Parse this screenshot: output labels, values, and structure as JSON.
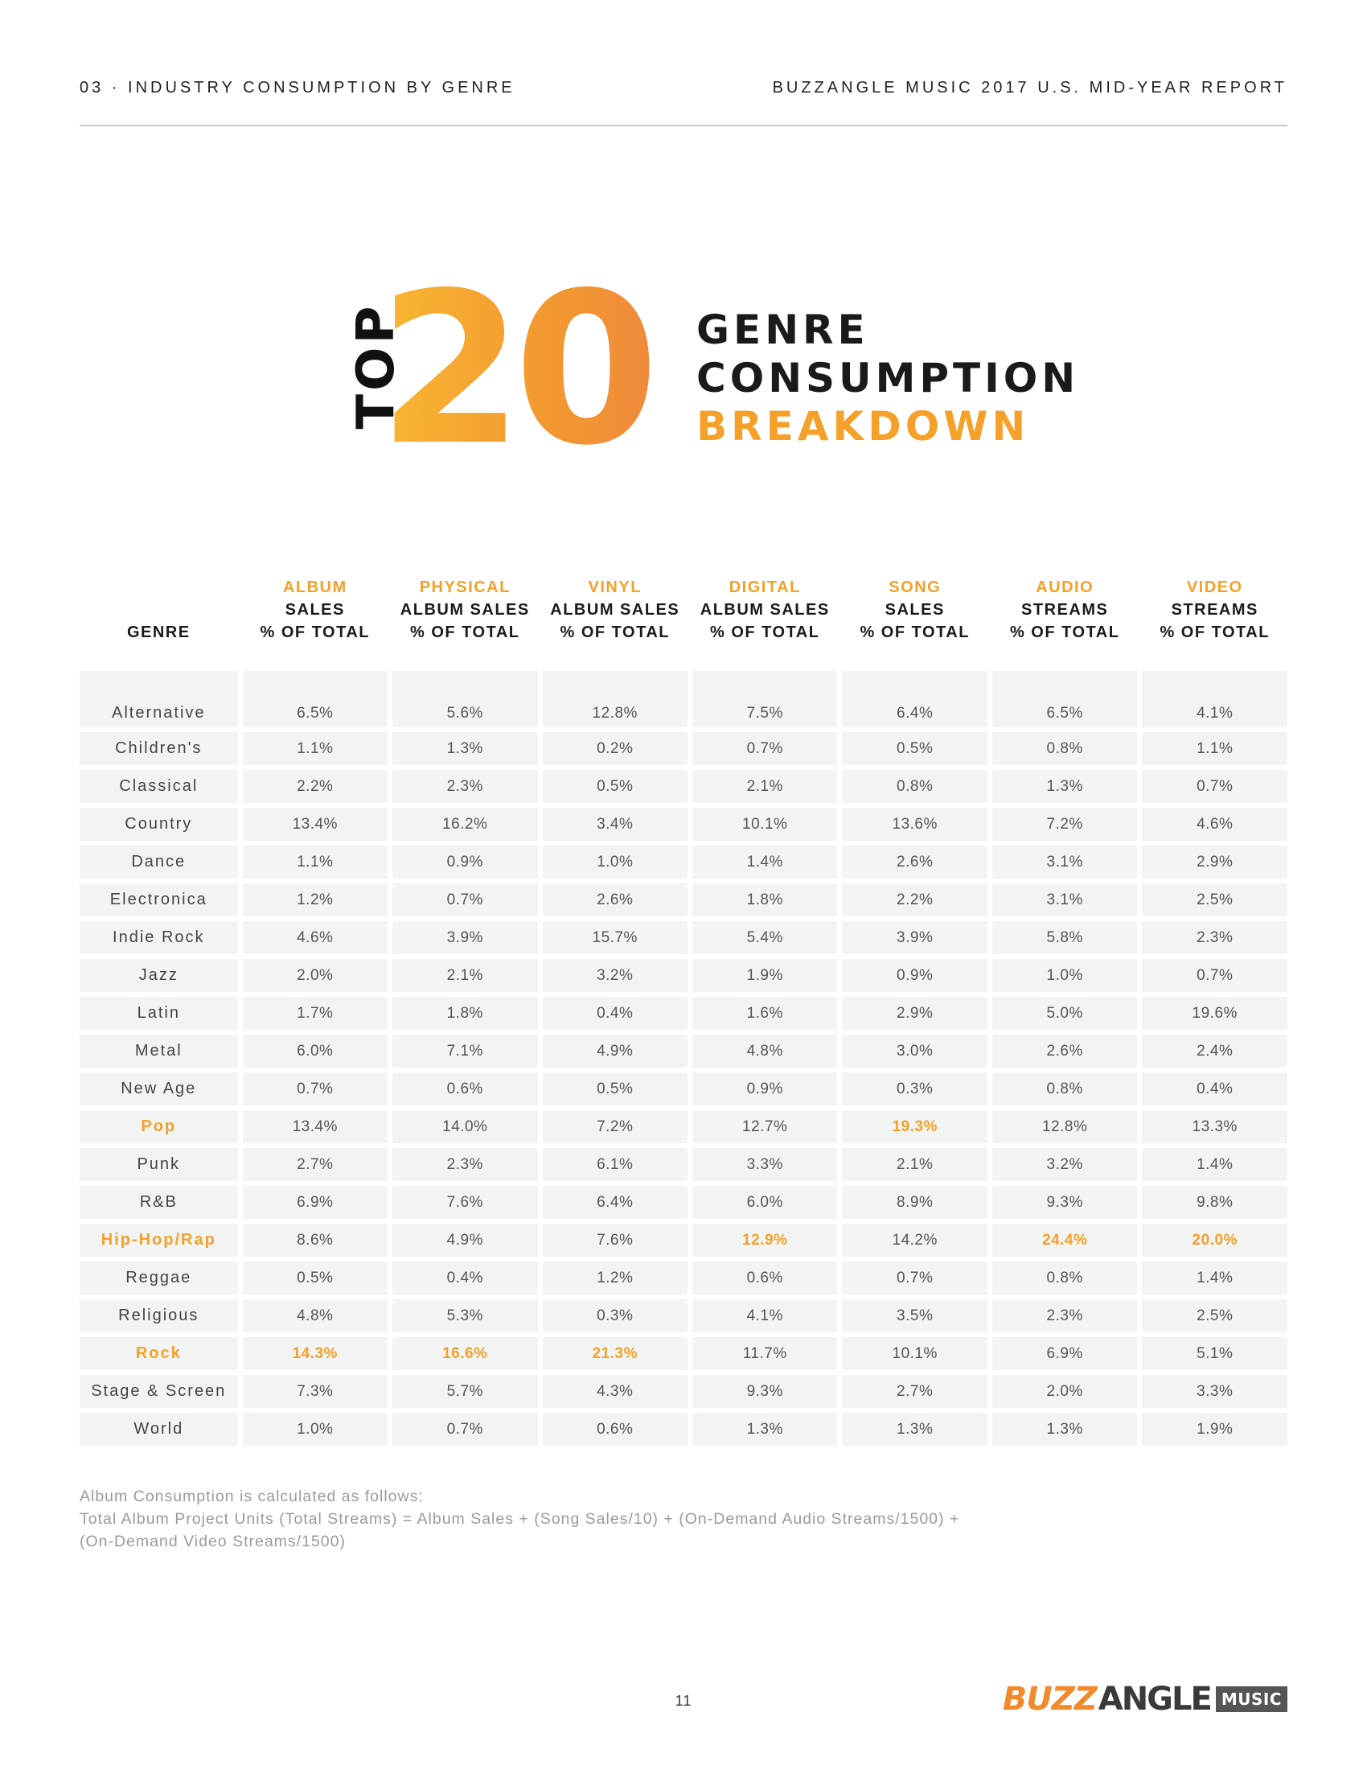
{
  "header": {
    "left": "03 · INDUSTRY CONSUMPTION BY GENRE",
    "right": "BUZZANGLE MUSIC 2017 U.S. MID-YEAR REPORT"
  },
  "title": {
    "top_word": "TOP",
    "number": "20",
    "line1": "GENRE",
    "line2": "CONSUMPTION",
    "line3": "BREAKDOWN"
  },
  "colors": {
    "accent": "#f5a028",
    "cell_bg": "#f2f3f3",
    "text": "#555555"
  },
  "table": {
    "headers": [
      {
        "lines": [
          "GENRE"
        ]
      },
      {
        "accent": "ALBUM",
        "lines": [
          "SALES",
          "% OF TOTAL"
        ]
      },
      {
        "accent": "PHYSICAL",
        "lines": [
          "ALBUM SALES",
          "% OF TOTAL"
        ]
      },
      {
        "accent": "VINYL",
        "lines": [
          "ALBUM SALES",
          "% OF TOTAL"
        ]
      },
      {
        "accent": "DIGITAL",
        "lines": [
          "ALBUM SALES",
          "% OF TOTAL"
        ]
      },
      {
        "accent": "SONG",
        "lines": [
          "SALES",
          "% OF TOTAL"
        ]
      },
      {
        "accent": "AUDIO",
        "lines": [
          "STREAMS",
          "% OF TOTAL"
        ]
      },
      {
        "accent": "VIDEO",
        "lines": [
          "STREAMS",
          "% OF TOTAL"
        ]
      }
    ],
    "rows": [
      {
        "genre": "Alternative",
        "values": [
          "6.5%",
          "5.6%",
          "12.8%",
          "7.5%",
          "6.4%",
          "6.5%",
          "4.1%"
        ],
        "hl": []
      },
      {
        "genre": "Children's",
        "values": [
          "1.1%",
          "1.3%",
          "0.2%",
          "0.7%",
          "0.5%",
          "0.8%",
          "1.1%"
        ],
        "hl": []
      },
      {
        "genre": "Classical",
        "values": [
          "2.2%",
          "2.3%",
          "0.5%",
          "2.1%",
          "0.8%",
          "1.3%",
          "0.7%"
        ],
        "hl": []
      },
      {
        "genre": "Country",
        "values": [
          "13.4%",
          "16.2%",
          "3.4%",
          "10.1%",
          "13.6%",
          "7.2%",
          "4.6%"
        ],
        "hl": []
      },
      {
        "genre": "Dance",
        "values": [
          "1.1%",
          "0.9%",
          "1.0%",
          "1.4%",
          "2.6%",
          "3.1%",
          "2.9%"
        ],
        "hl": []
      },
      {
        "genre": "Electronica",
        "values": [
          "1.2%",
          "0.7%",
          "2.6%",
          "1.8%",
          "2.2%",
          "3.1%",
          "2.5%"
        ],
        "hl": []
      },
      {
        "genre": "Indie Rock",
        "values": [
          "4.6%",
          "3.9%",
          "15.7%",
          "5.4%",
          "3.9%",
          "5.8%",
          "2.3%"
        ],
        "hl": []
      },
      {
        "genre": "Jazz",
        "values": [
          "2.0%",
          "2.1%",
          "3.2%",
          "1.9%",
          "0.9%",
          "1.0%",
          "0.7%"
        ],
        "hl": []
      },
      {
        "genre": "Latin",
        "values": [
          "1.7%",
          "1.8%",
          "0.4%",
          "1.6%",
          "2.9%",
          "5.0%",
          "19.6%"
        ],
        "hl": []
      },
      {
        "genre": "Metal",
        "values": [
          "6.0%",
          "7.1%",
          "4.9%",
          "4.8%",
          "3.0%",
          "2.6%",
          "2.4%"
        ],
        "hl": []
      },
      {
        "genre": "New Age",
        "values": [
          "0.7%",
          "0.6%",
          "0.5%",
          "0.9%",
          "0.3%",
          "0.8%",
          "0.4%"
        ],
        "hl": []
      },
      {
        "genre": "Pop",
        "values": [
          "13.4%",
          "14.0%",
          "7.2%",
          "12.7%",
          "19.3%",
          "12.8%",
          "13.3%"
        ],
        "hl": [
          0,
          5
        ]
      },
      {
        "genre": "Punk",
        "values": [
          "2.7%",
          "2.3%",
          "6.1%",
          "3.3%",
          "2.1%",
          "3.2%",
          "1.4%"
        ],
        "hl": []
      },
      {
        "genre": "R&B",
        "values": [
          "6.9%",
          "7.6%",
          "6.4%",
          "6.0%",
          "8.9%",
          "9.3%",
          "9.8%"
        ],
        "hl": []
      },
      {
        "genre": "Hip-Hop/Rap",
        "values": [
          "8.6%",
          "4.9%",
          "7.6%",
          "12.9%",
          "14.2%",
          "24.4%",
          "20.0%"
        ],
        "hl": [
          0,
          4,
          6,
          7
        ]
      },
      {
        "genre": "Reggae",
        "values": [
          "0.5%",
          "0.4%",
          "1.2%",
          "0.6%",
          "0.7%",
          "0.8%",
          "1.4%"
        ],
        "hl": []
      },
      {
        "genre": "Religious",
        "values": [
          "4.8%",
          "5.3%",
          "0.3%",
          "4.1%",
          "3.5%",
          "2.3%",
          "2.5%"
        ],
        "hl": []
      },
      {
        "genre": "Rock",
        "values": [
          "14.3%",
          "16.6%",
          "21.3%",
          "11.7%",
          "10.1%",
          "6.9%",
          "5.1%"
        ],
        "hl": [
          0,
          1,
          2,
          3
        ]
      },
      {
        "genre": "Stage & Screen",
        "values": [
          "7.3%",
          "5.7%",
          "4.3%",
          "9.3%",
          "2.7%",
          "2.0%",
          "3.3%"
        ],
        "hl": []
      },
      {
        "genre": "World",
        "values": [
          "1.0%",
          "0.7%",
          "0.6%",
          "1.3%",
          "1.3%",
          "1.3%",
          "1.9%"
        ],
        "hl": []
      }
    ]
  },
  "footnote": {
    "line1": "Album Consumption is calculated as follows:",
    "line2": "Total Album Project Units (Total Streams) = Album Sales + (Song Sales/10) + (On-Demand Audio Streams/1500) +",
    "line3": "(On-Demand Video Streams/1500)"
  },
  "page_number": "11",
  "logo": {
    "buzz": "BUZZ",
    "angle": "ANGLE",
    "music": "MUSIC"
  }
}
